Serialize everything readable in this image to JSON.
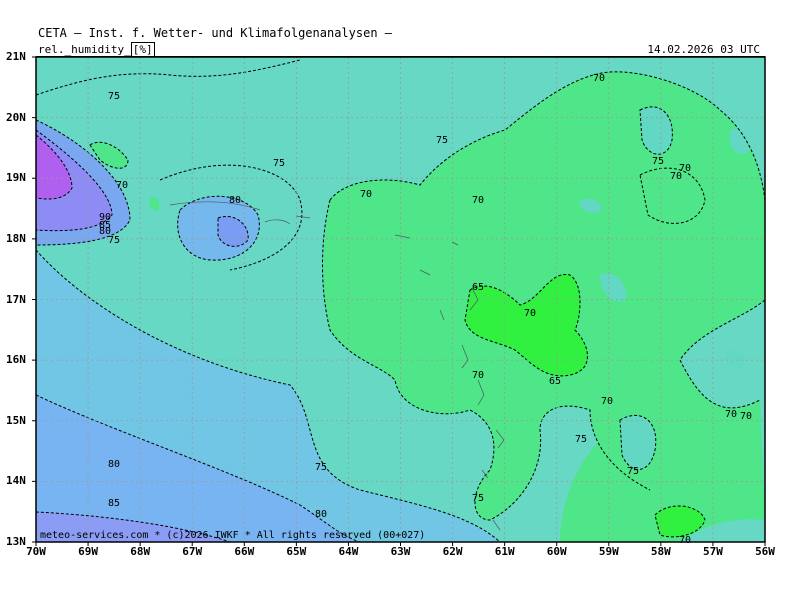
{
  "header": {
    "title": "CETA — Inst. f. Wetter- und Klimafolgenanalysen —",
    "field": "rel._humidity_",
    "unit": "[%]",
    "datetime": "14.02.2026  03 UTC"
  },
  "axes": {
    "lat_labels": [
      "21N",
      "20N",
      "19N",
      "18N",
      "17N",
      "16N",
      "15N",
      "14N",
      "13N"
    ],
    "lon_labels": [
      "70W",
      "69W",
      "68W",
      "67W",
      "66W",
      "65W",
      "64W",
      "63W",
      "62W",
      "61W",
      "60W",
      "59W",
      "58W",
      "57W",
      "56W"
    ]
  },
  "contour_labels": [
    "75",
    "70",
    "75",
    "75",
    "70",
    "80",
    "70",
    "70",
    "70",
    "75",
    "70",
    "70",
    "90",
    "85",
    "80",
    "75",
    "65",
    "70",
    "70",
    "65",
    "70",
    "70",
    "80",
    "75",
    "85",
    "80",
    "75",
    "75",
    "75",
    "70"
  ],
  "footer": "meteo-services.com * (c)2026 IWKF * All rights reserved (00+027)",
  "colors": {
    "h65": "#2cf03a",
    "h70": "#4ee87c",
    "h75": "#62dcbe",
    "h80": "#6ed0d8",
    "h85": "#76b4f2",
    "h90": "#8890f4",
    "h95": "#b060f0",
    "grid": "#aaaaaa"
  }
}
